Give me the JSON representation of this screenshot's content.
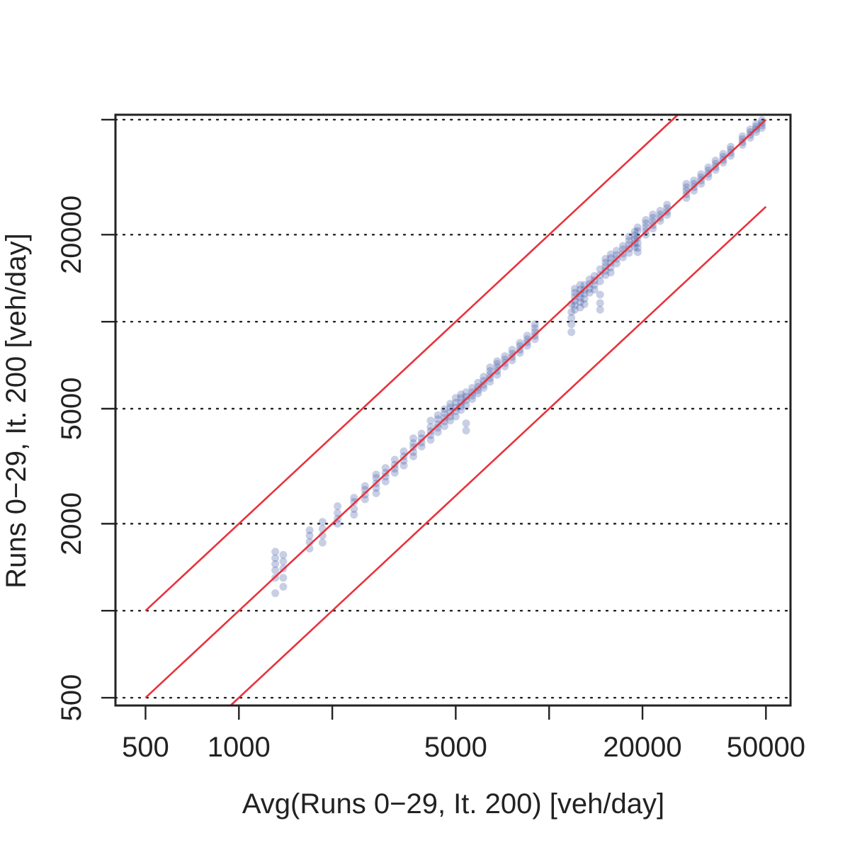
{
  "chart_data": {
    "type": "scatter",
    "title": "",
    "xlabel": "Avg(Runs 0−29, It. 200) [veh/day]",
    "ylabel": "Runs 0−29, It. 200 [veh/day]",
    "x_scale": "log",
    "y_scale": "log",
    "xlim": [
      400,
      60000
    ],
    "ylim": [
      470,
      52000
    ],
    "x_ticks": [
      500,
      1000,
      2000,
      5000,
      10000,
      20000,
      50000
    ],
    "x_tick_labels": [
      "500",
      "1000",
      "",
      "5000",
      "",
      "20000",
      "50000"
    ],
    "y_ticks": [
      500,
      1000,
      2000,
      5000,
      10000,
      20000,
      50000
    ],
    "y_tick_labels": [
      "500",
      "",
      "2000",
      "5000",
      "",
      "20000",
      ""
    ],
    "grid": "horizontal dotted at y ticks",
    "colors": {
      "points": "#3b52a0",
      "lines": "#e8323c",
      "axes": "#222222",
      "grid": "#222222"
    },
    "reference_lines": [
      {
        "slope": 1,
        "factor": 2
      },
      {
        "slope": 1,
        "factor": 1
      },
      {
        "slope": 1,
        "factor": 0.5
      }
    ],
    "reference_x_range": [
      500,
      50000
    ],
    "point_groups": [
      {
        "x": 1310,
        "y": [
          1150,
          1300,
          1380,
          1450,
          1520,
          1600
        ]
      },
      {
        "x": 1390,
        "y": [
          1210,
          1300,
          1400,
          1480,
          1560
        ]
      },
      {
        "x": 1690,
        "y": [
          1640,
          1730,
          1820,
          1900
        ]
      },
      {
        "x": 1860,
        "y": [
          1720,
          1820,
          1920,
          2030
        ]
      },
      {
        "x": 2080,
        "y": [
          2000,
          2080,
          2180,
          2300
        ]
      },
      {
        "x": 2350,
        "y": [
          2150,
          2250,
          2380,
          2460
        ]
      },
      {
        "x": 2550,
        "y": [
          2430,
          2520,
          2620,
          2700
        ]
      },
      {
        "x": 2770,
        "y": [
          2550,
          2660,
          2760,
          2880,
          2960
        ]
      },
      {
        "x": 2970,
        "y": [
          2800,
          2910,
          3000,
          3120
        ]
      },
      {
        "x": 3180,
        "y": [
          3000,
          3100,
          3200,
          3330
        ]
      },
      {
        "x": 3400,
        "y": [
          3180,
          3300,
          3420,
          3560
        ]
      },
      {
        "x": 3650,
        "y": [
          3420,
          3540,
          3680,
          3800,
          3950
        ]
      },
      {
        "x": 3880,
        "y": [
          3700,
          3820,
          3950,
          4100
        ]
      },
      {
        "x": 4150,
        "y": [
          3900,
          4050,
          4180,
          4320,
          4550
        ]
      },
      {
        "x": 4380,
        "y": [
          4150,
          4300,
          4420,
          4600,
          4750
        ]
      },
      {
        "x": 4600,
        "y": [
          4350,
          4520,
          4650,
          4820,
          4980
        ]
      },
      {
        "x": 4800,
        "y": [
          4550,
          4700,
          4850,
          5050,
          5200
        ]
      },
      {
        "x": 5000,
        "y": [
          4700,
          4900,
          5050,
          5250,
          5450
        ]
      },
      {
        "x": 5200,
        "y": [
          4950,
          5100,
          5250,
          5450,
          5600
        ]
      },
      {
        "x": 5400,
        "y": [
          4200,
          4450,
          5150,
          5350,
          5500,
          5700
        ]
      },
      {
        "x": 5650,
        "y": [
          5400,
          5550,
          5700,
          5900
        ]
      },
      {
        "x": 5900,
        "y": [
          5650,
          5800,
          5950,
          6150
        ]
      },
      {
        "x": 6150,
        "y": [
          5900,
          6050,
          6250,
          6450
        ]
      },
      {
        "x": 6450,
        "y": [
          6200,
          6380,
          6550,
          6750,
          6950
        ]
      },
      {
        "x": 6800,
        "y": [
          6550,
          6750,
          6950,
          7150,
          7300
        ]
      },
      {
        "x": 7200,
        "y": [
          7000,
          7200,
          7400,
          7600
        ]
      },
      {
        "x": 7600,
        "y": [
          7350,
          7550,
          7750,
          8000
        ]
      },
      {
        "x": 8050,
        "y": [
          7800,
          8000,
          8250,
          8450
        ]
      },
      {
        "x": 8500,
        "y": [
          8250,
          8480,
          8700,
          8950
        ]
      },
      {
        "x": 9000,
        "y": [
          8700,
          8950,
          9200,
          9500,
          9800
        ]
      },
      {
        "x": 11800,
        "y": [
          9200,
          9800,
          10300,
          10800,
          11500
        ]
      },
      {
        "x": 12100,
        "y": [
          11000,
          11400,
          11800,
          12200,
          12600,
          13000
        ]
      },
      {
        "x": 12600,
        "y": [
          11200,
          11700,
          12100,
          12500,
          12900,
          13400
        ]
      },
      {
        "x": 13000,
        "y": [
          11500,
          12000,
          12500,
          12900,
          13400
        ]
      },
      {
        "x": 13500,
        "y": [
          12600,
          13000,
          13500,
          14000
        ]
      },
      {
        "x": 14000,
        "y": [
          12900,
          13400,
          13900,
          14400
        ]
      },
      {
        "x": 14600,
        "y": [
          11000,
          11600,
          12400,
          13800,
          14500,
          15200
        ]
      },
      {
        "x": 15200,
        "y": [
          14500,
          15000,
          15500,
          16000,
          16500
        ]
      },
      {
        "x": 15800,
        "y": [
          14800,
          15400,
          16000,
          16600,
          17100
        ]
      },
      {
        "x": 16500,
        "y": [
          15900,
          16500,
          17000,
          17600
        ]
      },
      {
        "x": 17300,
        "y": [
          16700,
          17200,
          17800,
          18300
        ]
      },
      {
        "x": 18100,
        "y": [
          17300,
          17900,
          18500,
          19100,
          19700
        ]
      },
      {
        "x": 18900,
        "y": [
          18100,
          18700,
          19300,
          19900,
          20500
        ]
      },
      {
        "x": 19300,
        "y": [
          17400,
          18000,
          18700,
          19500,
          20600,
          21200
        ]
      },
      {
        "x": 20500,
        "y": [
          20000,
          20600,
          21200,
          21900,
          22500
        ]
      },
      {
        "x": 21600,
        "y": [
          21000,
          21600,
          22200,
          22900,
          23500
        ]
      },
      {
        "x": 22800,
        "y": [
          22300,
          22900,
          23500,
          24200
        ]
      },
      {
        "x": 24000,
        "y": [
          23400,
          24000,
          24700,
          25400
        ]
      },
      {
        "x": 27700,
        "y": [
          26800,
          27600,
          28400,
          29200,
          30000
        ]
      },
      {
        "x": 29300,
        "y": [
          28400,
          29200,
          30000,
          30800
        ]
      },
      {
        "x": 30900,
        "y": [
          30000,
          30800,
          31600,
          32400
        ]
      },
      {
        "x": 32600,
        "y": [
          31700,
          32500,
          33400,
          34200
        ]
      },
      {
        "x": 34400,
        "y": [
          33500,
          34300,
          35200,
          36100
        ]
      },
      {
        "x": 36400,
        "y": [
          35500,
          36300,
          37200,
          38100
        ]
      },
      {
        "x": 38500,
        "y": [
          37500,
          38400,
          39400,
          40300
        ]
      },
      {
        "x": 42000,
        "y": [
          40900,
          41800,
          42800,
          43800
        ]
      },
      {
        "x": 44500,
        "y": [
          43300,
          44300,
          45300,
          46300
        ]
      },
      {
        "x": 46500,
        "y": [
          45300,
          46300,
          47300,
          48300
        ]
      },
      {
        "x": 48500,
        "y": [
          46800,
          47800,
          48800,
          49800
        ]
      }
    ]
  }
}
